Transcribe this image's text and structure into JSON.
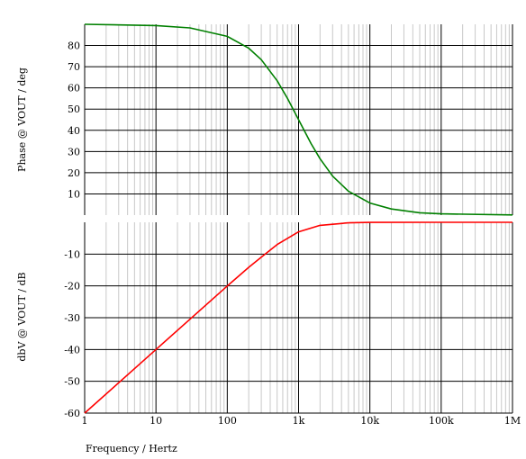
{
  "chart_data": [
    {
      "type": "line",
      "title": "",
      "xlabel": "",
      "ylabel": "Phase @ VOUT / deg",
      "xscale": "log",
      "xlim": [
        1,
        1000000
      ],
      "ylim": [
        0,
        90
      ],
      "grid": true,
      "y_ticks": [
        "10",
        "20",
        "30",
        "40",
        "50",
        "60",
        "70",
        "80"
      ],
      "color": "#008000",
      "series": [
        {
          "x": [
            1,
            10,
            30,
            100,
            200,
            300,
            500,
            700,
            1000,
            1500,
            2000,
            3000,
            5000,
            10000,
            20000,
            50000,
            100000,
            1000000
          ],
          "values": [
            90,
            89.4,
            88.3,
            84.3,
            78.7,
            73.3,
            63.4,
            55.0,
            45.0,
            33.7,
            26.6,
            18.4,
            11.3,
            5.7,
            2.9,
            1.1,
            0.6,
            0.1
          ]
        }
      ]
    },
    {
      "type": "line",
      "title": "",
      "xlabel": "Frequency / Hertz",
      "ylabel": "dbV @ VOUT / dB",
      "xscale": "log",
      "xlim": [
        1,
        1000000
      ],
      "ylim": [
        -60,
        0
      ],
      "grid": true,
      "x_ticks": [
        "1",
        "10",
        "100",
        "1k",
        "10k",
        "100k",
        "1M"
      ],
      "y_ticks": [
        "-10",
        "-20",
        "-30",
        "-40",
        "-50",
        "-60"
      ],
      "color": "#ff0000",
      "series": [
        {
          "x": [
            1,
            10,
            100,
            200,
            300,
            500,
            1000,
            2000,
            5000,
            10000,
            100000,
            1000000
          ],
          "values": [
            -60,
            -40,
            -20.04,
            -14.15,
            -10.97,
            -7.0,
            -3.01,
            -0.97,
            -0.17,
            -0.04,
            0,
            0
          ]
        }
      ]
    }
  ]
}
